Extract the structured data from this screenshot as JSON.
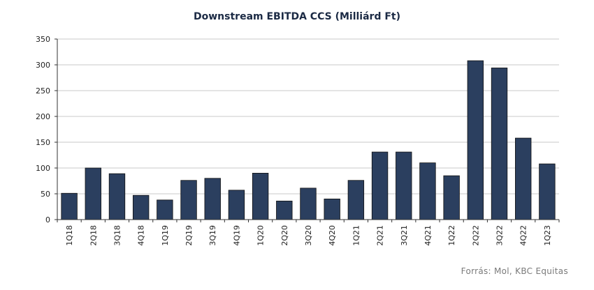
{
  "chart_data": {
    "type": "bar",
    "title": "Downstream EBITDA CCS (Milliárd Ft)",
    "xlabel": "",
    "ylabel": "",
    "ylim": [
      0,
      350
    ],
    "yticks": [
      0,
      50,
      100,
      150,
      200,
      250,
      300,
      350
    ],
    "grid": true,
    "bar_color": "#2b3f5f",
    "categories": [
      "1Q18",
      "2Q18",
      "3Q18",
      "4Q18",
      "1Q19",
      "2Q19",
      "3Q19",
      "4Q19",
      "1Q20",
      "2Q20",
      "3Q20",
      "4Q20",
      "1Q21",
      "2Q21",
      "3Q21",
      "4Q21",
      "1Q22",
      "2Q22",
      "3Q22",
      "4Q22",
      "1Q23"
    ],
    "values": [
      51,
      100,
      89,
      47,
      38,
      76,
      80,
      57,
      90,
      36,
      61,
      40,
      76,
      131,
      131,
      110,
      85,
      308,
      294,
      158,
      108
    ]
  },
  "source": "Forrás: Mol, KBC Equitas"
}
